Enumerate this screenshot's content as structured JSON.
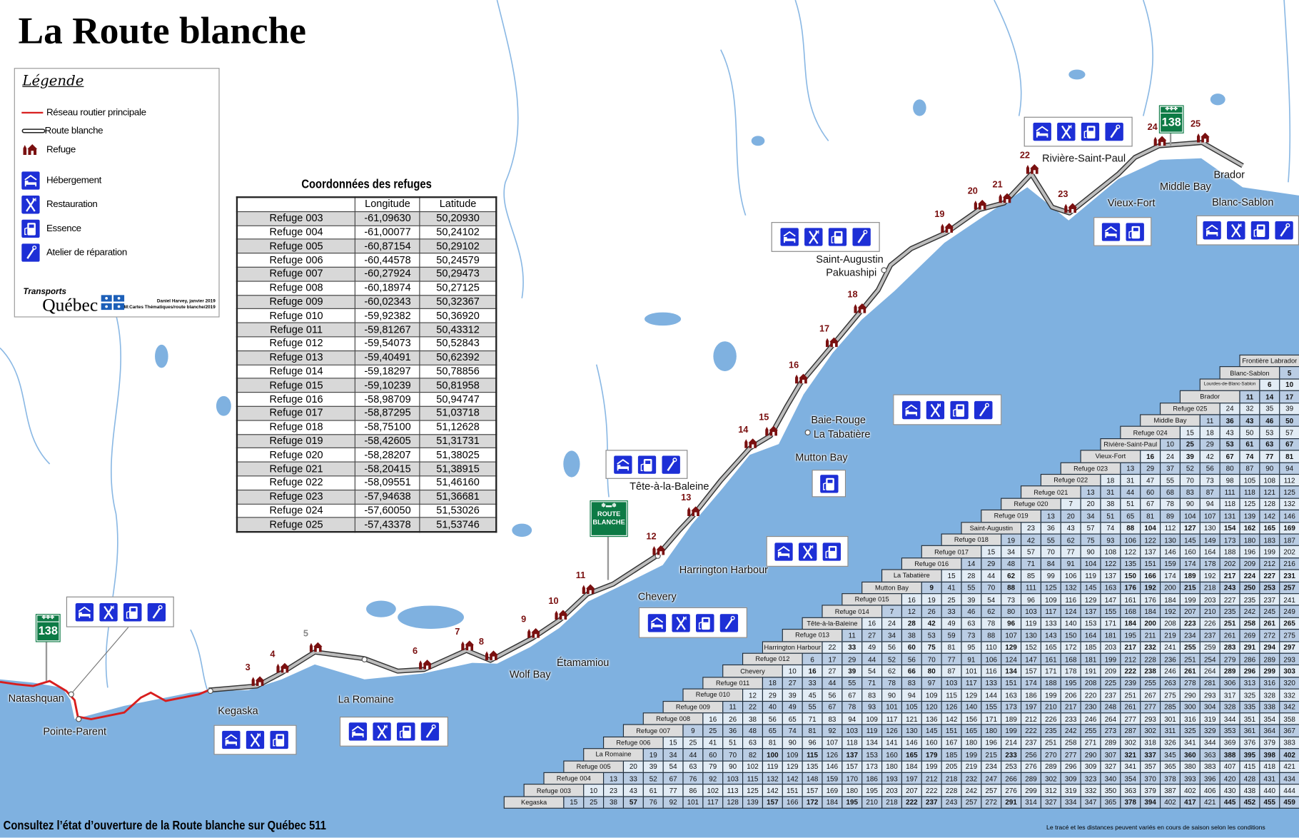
{
  "title": "La Route blanche",
  "legend": {
    "title": "Légende",
    "items": [
      {
        "label": "Réseau routier principale",
        "icon": "red-line"
      },
      {
        "label": "Route blanche",
        "icon": "white-road-line"
      },
      {
        "label": "Refuge",
        "icon": "refuge-icon"
      },
      {
        "label": "Hébergement",
        "icon": "bed-icon"
      },
      {
        "label": "Restauration",
        "icon": "fork-knife-icon"
      },
      {
        "label": "Essence",
        "icon": "gas-pump-icon"
      },
      {
        "label": "Atelier de réparation",
        "icon": "wrench-icon"
      }
    ],
    "logo_line1": "Transports",
    "logo_line2": "Québec",
    "credit_line1": "Daniel Harvey, janvier 2019",
    "credit_line2": "M:Cartes Thématiques/route blanche/2019"
  },
  "coordinates": {
    "title": "Coordonnées des refuges",
    "headers": [
      "",
      "Longitude",
      "Latitude"
    ],
    "rows": [
      [
        "Refuge 003",
        "-61,09630",
        "50,20930"
      ],
      [
        "Refuge 004",
        "-61,00077",
        "50,24102"
      ],
      [
        "Refuge 005",
        "-60,87154",
        "50,29102"
      ],
      [
        "Refuge 006",
        "-60,44578",
        "50,24579"
      ],
      [
        "Refuge 007",
        "-60,27924",
        "50,29473"
      ],
      [
        "Refuge 008",
        "-60,18974",
        "50,27125"
      ],
      [
        "Refuge 009",
        "-60,02343",
        "50,32367"
      ],
      [
        "Refuge 010",
        "-59,92382",
        "50,36920"
      ],
      [
        "Refuge 011",
        "-59,81267",
        "50,43312"
      ],
      [
        "Refuge 012",
        "-59,54073",
        "50,52843"
      ],
      [
        "Refuge 013",
        "-59,40491",
        "50,62392"
      ],
      [
        "Refuge 014",
        "-59,18297",
        "50,78856"
      ],
      [
        "Refuge 015",
        "-59,10239",
        "50,81958"
      ],
      [
        "Refuge 016",
        "-58,98709",
        "50,94747"
      ],
      [
        "Refuge 017",
        "-58,87295",
        "51,03718"
      ],
      [
        "Refuge 018",
        "-58,75100",
        "51,12628"
      ],
      [
        "Refuge 019",
        "-58,42605",
        "51,31731"
      ],
      [
        "Refuge 020",
        "-58,28207",
        "51,38025"
      ],
      [
        "Refuge 021",
        "-58,20415",
        "51,38915"
      ],
      [
        "Refuge 022",
        "-58,09551",
        "51,46160"
      ],
      [
        "Refuge 023",
        "-57,94638",
        "51,36681"
      ],
      [
        "Refuge 024",
        "-57,60050",
        "51,53026"
      ],
      [
        "Refuge 025",
        "-57,43378",
        "51,53746"
      ]
    ]
  },
  "places": [
    "Natashquan",
    "Pointe-Parent",
    "Kegaska",
    "La Romaine",
    "Wolf Bay",
    "Étamamiou",
    "Chevery",
    "Harrington Harbour",
    "Tête-à-la-Baleine",
    "Baie-Rouge",
    "La Tabatière",
    "Mutton Bay",
    "Saint-Augustin",
    "Pakuashipi",
    "Rivière-Saint-Paul",
    "Vieux-Fort",
    "Middle Bay",
    "Brador",
    "Blanc-Sablon"
  ],
  "refuges": [
    "3",
    "4",
    "5",
    "6",
    "7",
    "8",
    "9",
    "10",
    "11",
    "12",
    "13",
    "14",
    "15",
    "16",
    "17",
    "18",
    "19",
    "20",
    "21",
    "22",
    "23",
    "24",
    "25"
  ],
  "services": [
    {
      "icons": [
        "bed-icon",
        "fork-knife-icon",
        "gas-pump-icon",
        "wrench-icon"
      ]
    },
    {
      "icons": [
        "bed-icon",
        "fork-knife-icon",
        "gas-pump-icon"
      ]
    },
    {
      "icons": [
        "bed-icon",
        "fork-knife-icon",
        "gas-pump-icon",
        "wrench-icon"
      ]
    },
    {
      "icons": [
        "bed-icon",
        "fork-knife-icon",
        "gas-pump-icon",
        "wrench-icon"
      ]
    },
    {
      "icons": [
        "bed-icon",
        "fork-knife-icon",
        "gas-pump-icon"
      ]
    },
    {
      "icons": [
        "bed-icon",
        "gas-pump-icon",
        "wrench-icon"
      ]
    },
    {
      "icons": [
        "gas-pump-icon"
      ]
    },
    {
      "icons": [
        "bed-icon",
        "fork-knife-icon",
        "gas-pump-icon",
        "wrench-icon"
      ]
    },
    {
      "icons": [
        "bed-icon",
        "fork-knife-icon",
        "gas-pump-icon",
        "wrench-icon"
      ]
    },
    {
      "icons": [
        "bed-icon",
        "fork-knife-icon",
        "gas-pump-icon",
        "wrench-icon"
      ]
    },
    {
      "icons": [
        "bed-icon",
        "gas-pump-icon"
      ]
    },
    {
      "icons": [
        "bed-icon",
        "fork-knife-icon",
        "gas-pump-icon",
        "wrench-icon"
      ]
    }
  ],
  "signs": {
    "route_number": "138",
    "route_blanche_line1": "ROUTE",
    "route_blanche_line2": "BLANCHE"
  },
  "distance_table": {
    "rows": [
      {
        "label": "Frontière Labrador",
        "values": []
      },
      {
        "label": "Blanc-Sablon",
        "values": [
          5
        ]
      },
      {
        "label": "Lourdes-de-Blanc-Sablon",
        "values": [
          6,
          10
        ]
      },
      {
        "label": "Brador",
        "values": [
          11,
          14,
          17
        ]
      },
      {
        "label": "Refuge 025",
        "values": [
          24,
          32,
          35,
          39
        ]
      },
      {
        "label": "Middle Bay",
        "values": [
          11,
          36,
          43,
          46,
          50
        ]
      },
      {
        "label": "Refuge 024",
        "values": [
          15,
          18,
          43,
          50,
          53,
          57
        ]
      },
      {
        "label": "Rivière-Saint-Paul",
        "values": [
          10,
          25,
          29,
          53,
          61,
          63,
          67
        ]
      },
      {
        "label": "Vieux-Fort",
        "values": [
          16,
          24,
          39,
          42,
          67,
          74,
          77,
          81
        ]
      },
      {
        "label": "Refuge 023",
        "values": [
          13,
          29,
          37,
          52,
          56,
          80,
          87,
          90,
          94
        ]
      },
      {
        "label": "Refuge 022",
        "values": [
          18,
          31,
          47,
          55,
          70,
          73,
          98,
          105,
          108,
          112
        ]
      },
      {
        "label": "Refuge 021",
        "values": [
          13,
          31,
          44,
          60,
          68,
          83,
          87,
          111,
          118,
          121,
          125
        ]
      },
      {
        "label": "Refuge 020",
        "values": [
          7,
          20,
          38,
          51,
          67,
          78,
          90,
          94,
          118,
          125,
          128,
          132
        ]
      },
      {
        "label": "Refuge 019",
        "values": [
          13,
          20,
          34,
          51,
          65,
          81,
          89,
          104,
          107,
          131,
          139,
          142,
          146
        ]
      },
      {
        "label": "Saint-Augustin",
        "values": [
          23,
          36,
          43,
          57,
          74,
          88,
          104,
          112,
          127,
          130,
          154,
          162,
          165,
          169
        ]
      },
      {
        "label": "Refuge 018",
        "values": [
          19,
          42,
          55,
          62,
          75,
          93,
          106,
          122,
          130,
          145,
          149,
          173,
          180,
          183,
          187
        ]
      },
      {
        "label": "Refuge 017",
        "values": [
          15,
          34,
          57,
          70,
          77,
          90,
          108,
          122,
          137,
          146,
          160,
          164,
          188,
          196,
          199,
          202
        ]
      },
      {
        "label": "Refuge 016",
        "values": [
          14,
          29,
          48,
          71,
          84,
          91,
          104,
          122,
          135,
          151,
          159,
          174,
          178,
          202,
          209,
          212,
          216
        ]
      },
      {
        "label": "La Tabatière",
        "values": [
          15,
          28,
          44,
          62,
          85,
          99,
          106,
          119,
          137,
          150,
          166,
          174,
          189,
          192,
          217,
          224,
          227,
          231
        ]
      },
      {
        "label": "Mutton Bay",
        "values": [
          9,
          41,
          55,
          70,
          88,
          111,
          125,
          132,
          145,
          163,
          176,
          192,
          200,
          215,
          218,
          243,
          250,
          253,
          257
        ]
      },
      {
        "label": "Refuge 015",
        "values": [
          16,
          19,
          25,
          39,
          54,
          73,
          96,
          109,
          116,
          129,
          147,
          161,
          176,
          184,
          199,
          203,
          227,
          235,
          237,
          241
        ]
      },
      {
        "label": "Refuge 014",
        "values": [
          7,
          12,
          26,
          33,
          46,
          62,
          80,
          103,
          117,
          124,
          137,
          155,
          168,
          184,
          192,
          207,
          210,
          235,
          242,
          245,
          249
        ]
      },
      {
        "label": "Tête-à-la-Baleine",
        "values": [
          16,
          24,
          28,
          42,
          49,
          63,
          78,
          96,
          119,
          133,
          140,
          153,
          171,
          184,
          200,
          208,
          223,
          226,
          251,
          258,
          261,
          265
        ]
      },
      {
        "label": "Refuge 013",
        "values": [
          11,
          27,
          34,
          38,
          53,
          59,
          73,
          88,
          107,
          130,
          143,
          150,
          164,
          181,
          195,
          211,
          219,
          234,
          237,
          261,
          269,
          272,
          275
        ]
      },
      {
        "label": "Harrington Harbour",
        "values": [
          22,
          33,
          49,
          56,
          60,
          75,
          81,
          95,
          110,
          129,
          152,
          165,
          172,
          185,
          203,
          217,
          232,
          241,
          255,
          259,
          283,
          291,
          294,
          297
        ]
      },
      {
        "label": "Refuge 012",
        "values": [
          6,
          17,
          29,
          44,
          52,
          56,
          70,
          77,
          91,
          106,
          124,
          147,
          161,
          168,
          181,
          199,
          212,
          228,
          236,
          251,
          254,
          279,
          286,
          289,
          293
        ]
      },
      {
        "label": "Chevery",
        "values": [
          10,
          16,
          27,
          39,
          54,
          62,
          66,
          80,
          87,
          101,
          116,
          134,
          157,
          171,
          178,
          191,
          209,
          222,
          238,
          246,
          261,
          264,
          289,
          296,
          299,
          303
        ]
      },
      {
        "label": "Refuge 011",
        "values": [
          18,
          27,
          33,
          44,
          55,
          71,
          78,
          83,
          97,
          103,
          117,
          133,
          151,
          174,
          188,
          195,
          208,
          225,
          239,
          255,
          263,
          278,
          281,
          306,
          313,
          316,
          320
        ]
      },
      {
        "label": "Refuge 010",
        "values": [
          12,
          29,
          39,
          45,
          56,
          67,
          83,
          90,
          94,
          109,
          115,
          129,
          144,
          163,
          186,
          199,
          206,
          220,
          237,
          251,
          267,
          275,
          290,
          293,
          317,
          325,
          328,
          332
        ]
      },
      {
        "label": "Refuge 009",
        "values": [
          11,
          22,
          40,
          49,
          55,
          67,
          78,
          93,
          101,
          105,
          120,
          126,
          140,
          155,
          173,
          197,
          210,
          217,
          230,
          248,
          261,
          277,
          285,
          300,
          304,
          328,
          335,
          338,
          342
        ]
      },
      {
        "label": "Refuge 008",
        "values": [
          16,
          26,
          38,
          56,
          65,
          71,
          83,
          94,
          109,
          117,
          121,
          136,
          142,
          156,
          171,
          189,
          212,
          226,
          233,
          246,
          264,
          277,
          293,
          301,
          316,
          319,
          344,
          351,
          354,
          358
        ]
      },
      {
        "label": "Refuge 007",
        "values": [
          9,
          25,
          36,
          48,
          65,
          74,
          81,
          92,
          103,
          119,
          126,
          130,
          145,
          151,
          165,
          180,
          199,
          222,
          235,
          242,
          255,
          273,
          287,
          302,
          311,
          325,
          329,
          353,
          361,
          364,
          367
        ]
      },
      {
        "label": "Refuge 006",
        "values": [
          15,
          25,
          41,
          51,
          63,
          81,
          90,
          96,
          107,
          118,
          134,
          141,
          146,
          160,
          167,
          180,
          196,
          214,
          237,
          251,
          258,
          271,
          289,
          302,
          318,
          326,
          341,
          344,
          369,
          376,
          379,
          383
        ]
      },
      {
        "label": "La Romaine",
        "values": [
          19,
          34,
          44,
          60,
          70,
          82,
          100,
          109,
          115,
          126,
          137,
          153,
          160,
          165,
          179,
          185,
          199,
          215,
          233,
          256,
          270,
          277,
          290,
          307,
          321,
          337,
          345,
          360,
          363,
          388,
          395,
          398,
          402
        ]
      },
      {
        "label": "Refuge 005",
        "values": [
          20,
          39,
          54,
          63,
          79,
          90,
          102,
          119,
          129,
          135,
          146,
          157,
          173,
          180,
          184,
          199,
          205,
          219,
          234,
          253,
          276,
          289,
          296,
          309,
          327,
          341,
          357,
          365,
          380,
          383,
          407,
          415,
          418,
          421
        ]
      },
      {
        "label": "Refuge 004",
        "values": [
          13,
          33,
          52,
          67,
          76,
          92,
          103,
          115,
          132,
          142,
          148,
          159,
          170,
          186,
          193,
          197,
          212,
          218,
          232,
          247,
          266,
          289,
          302,
          309,
          323,
          340,
          354,
          370,
          378,
          393,
          396,
          420,
          428,
          431,
          434
        ]
      },
      {
        "label": "Refuge 003",
        "values": [
          10,
          23,
          43,
          61,
          77,
          86,
          102,
          113,
          125,
          142,
          151,
          157,
          169,
          180,
          195,
          203,
          207,
          222,
          228,
          242,
          257,
          276,
          299,
          312,
          319,
          332,
          350,
          363,
          379,
          387,
          402,
          406,
          430,
          438,
          440,
          444
        ]
      },
      {
        "label": "Kegaska",
        "values": [
          15,
          25,
          38,
          57,
          76,
          92,
          101,
          117,
          128,
          139,
          157,
          166,
          172,
          184,
          195,
          210,
          218,
          222,
          237,
          243,
          257,
          272,
          291,
          314,
          327,
          334,
          347,
          365,
          378,
          394,
          402,
          417,
          421,
          445,
          452,
          455,
          459
        ]
      }
    ]
  },
  "footer": "Consultez l’état d’ouverture de la Route blanche sur Québec 511",
  "note": "Le tracé et les distances peuvent variés en cours de saison selon les conditions",
  "colors": {
    "sea": "#7fb1e0",
    "main_road": "#d81e1e",
    "route_blanche": "#a9a9a9",
    "refuge": "#7a1010",
    "service_icon": "#1d2fd6",
    "sign_green": "#0d7a45"
  }
}
